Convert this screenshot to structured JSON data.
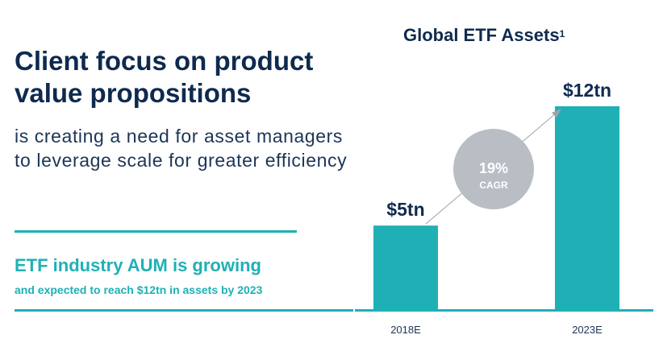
{
  "headline": "Client focus on product value propositions",
  "subtext": "is creating a need for asset managers to leverage scale for greater efficiency",
  "aum": {
    "title": "ETF industry AUM is growing",
    "subtitle": "and expected to reach $12tn in assets by 2023"
  },
  "chart_data": {
    "type": "bar",
    "title": "Global ETF Assets",
    "title_footnote": "1",
    "categories": [
      "2018E",
      "2023E"
    ],
    "values": [
      5,
      12
    ],
    "value_labels": [
      "$5tn",
      "$12tn"
    ],
    "unit": "tn",
    "ylim": [
      0,
      12.5
    ],
    "annotation": {
      "value": "19%",
      "label": "CAGR"
    },
    "xlabel": "",
    "ylabel": "",
    "grid": false,
    "colors": {
      "bar": "#1fb0b6",
      "text": "#0f2a4f",
      "annotation_circle": "#b8bec4",
      "annotation_text": "#ffffff",
      "arrow": "#9aa2aa",
      "tick": "#1c3557"
    }
  }
}
